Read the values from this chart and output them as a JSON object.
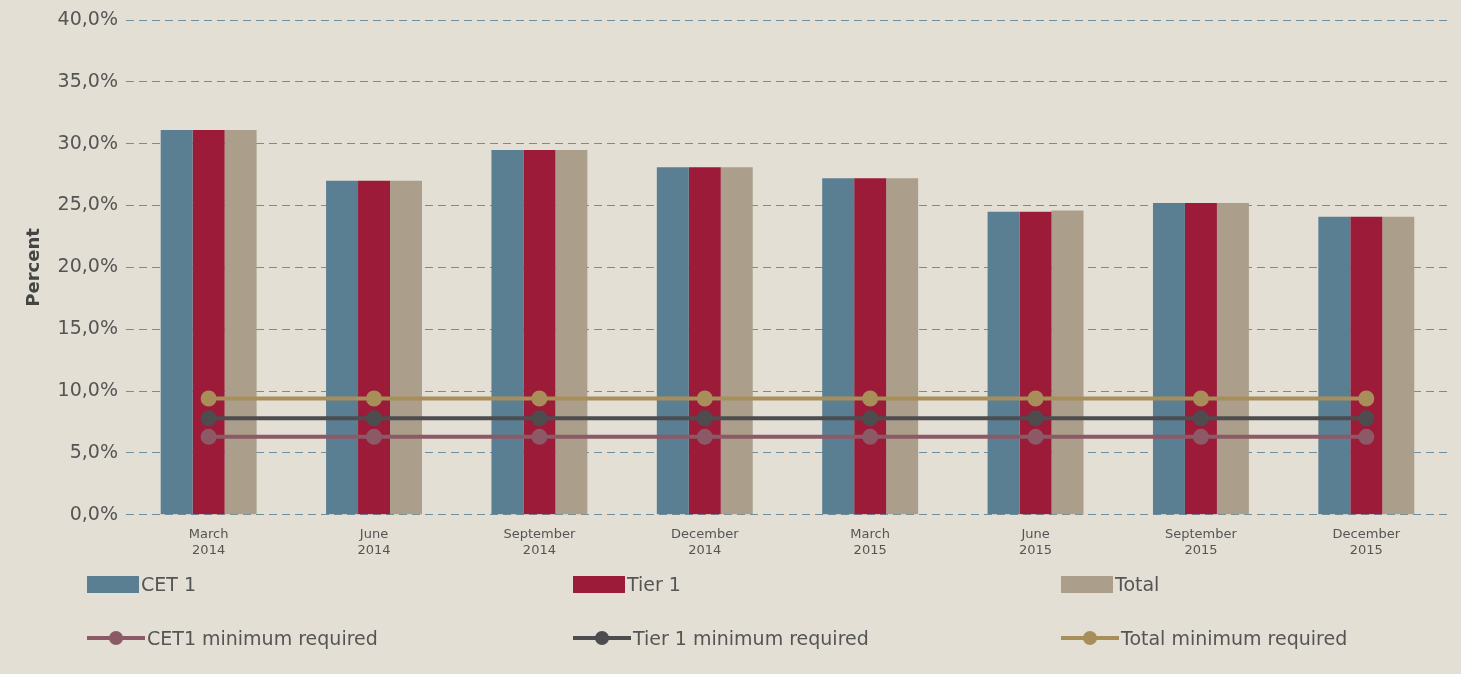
{
  "chart_data": {
    "type": "bar",
    "ylabel": "Percent",
    "categories": [
      "March 2014",
      "June 2014",
      "September 2014",
      "December 2014",
      "March 2015",
      "June 2015",
      "September 2015",
      "December 2015"
    ],
    "series": [
      {
        "name": "CET 1",
        "color": "#5a7e92",
        "values": [
          31.1,
          27.0,
          29.5,
          28.1,
          27.2,
          24.5,
          25.2,
          24.1
        ]
      },
      {
        "name": "Tier 1",
        "color": "#9b1b39",
        "values": [
          31.1,
          27.0,
          29.5,
          28.1,
          27.2,
          24.5,
          25.2,
          24.1
        ]
      },
      {
        "name": "Total",
        "color": "#ab9f8c",
        "values": [
          31.1,
          27.0,
          29.5,
          28.1,
          27.2,
          24.6,
          25.2,
          24.1
        ]
      },
      {
        "name": "CET1 minimum required",
        "type": "line",
        "color": "#8c5a66",
        "values": [
          6.3,
          6.3,
          6.3,
          6.3,
          6.3,
          6.3,
          6.3,
          6.3
        ]
      },
      {
        "name": "Tier 1 minimum required",
        "type": "line",
        "color": "#4d4d4f",
        "values": [
          7.8,
          7.8,
          7.8,
          7.8,
          7.8,
          7.8,
          7.8,
          7.8
        ]
      },
      {
        "name": "Total minimum required",
        "type": "line",
        "color": "#a88f5a",
        "values": [
          9.4,
          9.4,
          9.4,
          9.4,
          9.4,
          9.4,
          9.4,
          9.4
        ]
      }
    ],
    "ylim": [
      0,
      40
    ],
    "yticks": [
      {
        "value": 0,
        "label": "0,0%"
      },
      {
        "value": 5,
        "label": "5,0%"
      },
      {
        "value": 10,
        "label": "10,0%"
      },
      {
        "value": 15,
        "label": "15,0%"
      },
      {
        "value": 20,
        "label": "20,0%"
      },
      {
        "value": 25,
        "label": "25,0%"
      },
      {
        "value": 30,
        "label": "30,0%"
      },
      {
        "value": 35,
        "label": "35,0%"
      },
      {
        "value": 40,
        "label": "40,0%"
      }
    ],
    "grid": "y",
    "legend": "bottom",
    "marker": "circle",
    "line_style": "solid"
  }
}
